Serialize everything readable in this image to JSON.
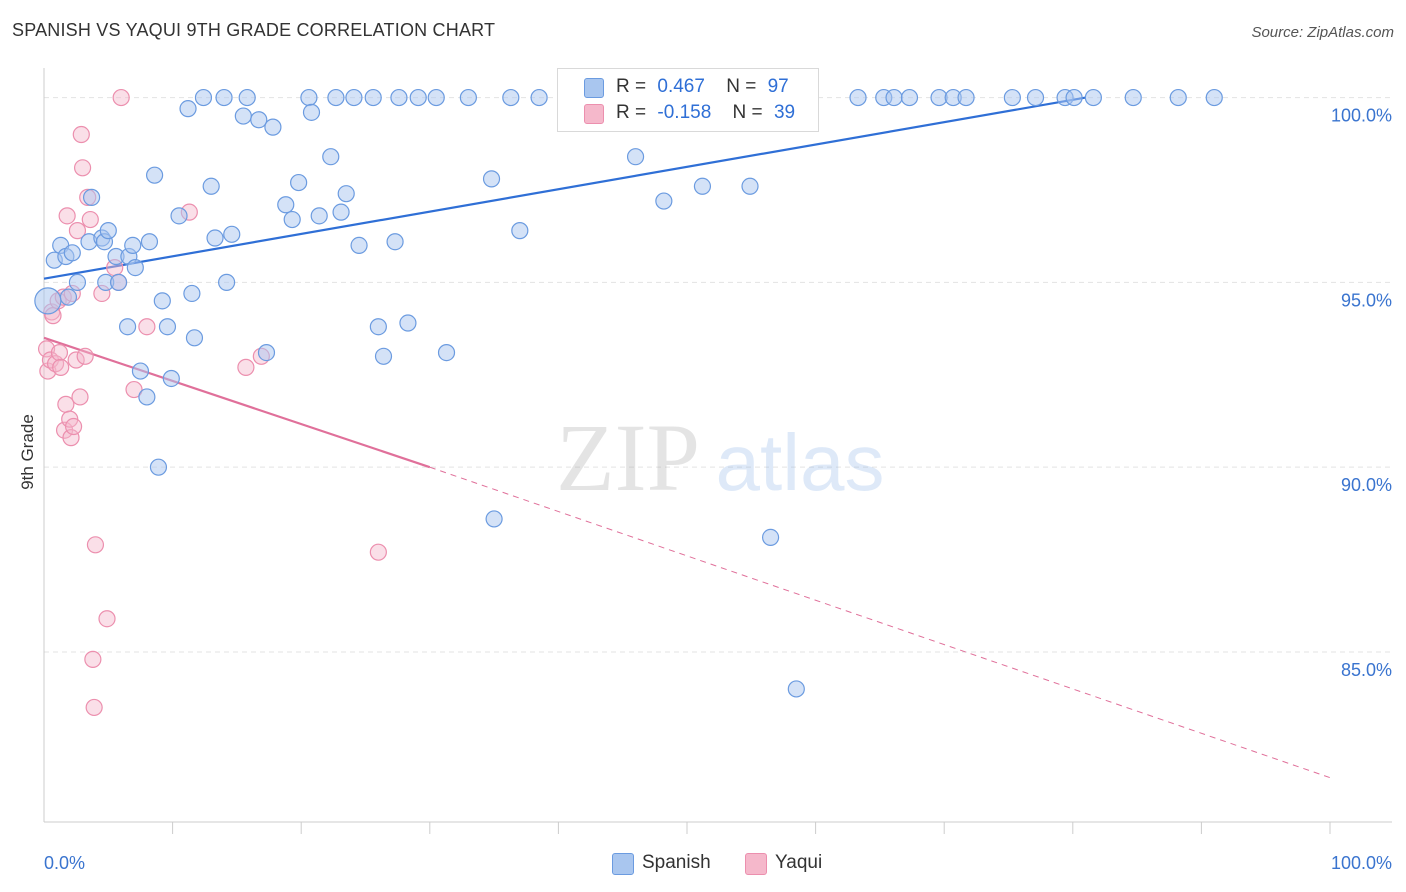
{
  "header": {
    "title": "SPANISH VS YAQUI 9TH GRADE CORRELATION CHART",
    "source": "Source: ZipAtlas.com"
  },
  "watermark": {
    "zip": "ZIP",
    "atlas": "atlas"
  },
  "legend": {
    "rows": [
      {
        "r_label": "R =",
        "r_value": "0.467",
        "n_label": "N =",
        "n_value": "97"
      },
      {
        "r_label": "R =",
        "r_value": "-0.158",
        "n_label": "N =",
        "n_value": "39"
      }
    ]
  },
  "bottom_legend": {
    "spanish": "Spanish",
    "yaqui": "Yaqui"
  },
  "colors": {
    "spanish_fill": "#a9c6ef",
    "spanish_stroke": "#6b9be0",
    "spanish_line": "#2f6fd6",
    "yaqui_fill": "#f5b8cb",
    "yaqui_stroke": "#ec8fae",
    "yaqui_line": "#e0709a",
    "axis_value": "#3a74cf",
    "grid": "#e3e3e3"
  },
  "chart_data": {
    "type": "scatter",
    "title": "SPANISH VS YAQUI 9TH GRADE CORRELATION CHART",
    "xlabel": "",
    "ylabel": "9th Grade",
    "xlim": [
      0,
      100
    ],
    "ylim": [
      80.4,
      100.8
    ],
    "x_tick_labels": [
      "0.0%",
      "100.0%"
    ],
    "y_ticks": [
      85,
      90,
      95,
      100
    ],
    "y_tick_labels": [
      "85.0%",
      "90.0%",
      "95.0%",
      "100.0%"
    ],
    "grid": true,
    "series": [
      {
        "name": "Spanish",
        "r": 0.467,
        "n": 97,
        "trend": {
          "x0": 0,
          "y0": 95.1,
          "x1": 81,
          "y1": 100.0
        },
        "points": [
          [
            0.8,
            95.6
          ],
          [
            1.3,
            96.0
          ],
          [
            1.7,
            95.7
          ],
          [
            1.9,
            94.6
          ],
          [
            2.2,
            95.8
          ],
          [
            2.6,
            95.0
          ],
          [
            3.5,
            96.1
          ],
          [
            3.7,
            97.3
          ],
          [
            4.5,
            96.2
          ],
          [
            4.7,
            96.1
          ],
          [
            4.8,
            95.0
          ],
          [
            5.0,
            96.4
          ],
          [
            5.6,
            95.7
          ],
          [
            5.8,
            95.0
          ],
          [
            6.5,
            93.8
          ],
          [
            6.6,
            95.7
          ],
          [
            6.9,
            96.0
          ],
          [
            7.1,
            95.4
          ],
          [
            7.5,
            92.6
          ],
          [
            8.0,
            91.9
          ],
          [
            8.2,
            96.1
          ],
          [
            8.6,
            97.9
          ],
          [
            8.9,
            90.0
          ],
          [
            9.2,
            94.5
          ],
          [
            9.6,
            93.8
          ],
          [
            9.9,
            92.4
          ],
          [
            10.5,
            96.8
          ],
          [
            11.2,
            99.7
          ],
          [
            11.5,
            94.7
          ],
          [
            11.7,
            93.5
          ],
          [
            12.4,
            100.0
          ],
          [
            13.0,
            97.6
          ],
          [
            13.3,
            96.2
          ],
          [
            14.0,
            100.0
          ],
          [
            14.2,
            95.0
          ],
          [
            14.6,
            96.3
          ],
          [
            15.5,
            99.5
          ],
          [
            15.8,
            100.0
          ],
          [
            16.7,
            99.4
          ],
          [
            17.3,
            93.1
          ],
          [
            17.8,
            99.2
          ],
          [
            18.8,
            97.1
          ],
          [
            19.3,
            96.7
          ],
          [
            19.8,
            97.7
          ],
          [
            20.6,
            100.0
          ],
          [
            20.8,
            99.6
          ],
          [
            21.4,
            96.8
          ],
          [
            22.3,
            98.4
          ],
          [
            22.7,
            100.0
          ],
          [
            23.1,
            96.9
          ],
          [
            23.5,
            97.4
          ],
          [
            24.1,
            100.0
          ],
          [
            24.5,
            96.0
          ],
          [
            25.6,
            100.0
          ],
          [
            26.0,
            93.8
          ],
          [
            26.4,
            93.0
          ],
          [
            27.3,
            96.1
          ],
          [
            27.6,
            100.0
          ],
          [
            28.3,
            93.9
          ],
          [
            29.1,
            100.0
          ],
          [
            30.5,
            100.0
          ],
          [
            31.3,
            93.1
          ],
          [
            33.0,
            100.0
          ],
          [
            34.8,
            97.8
          ],
          [
            35.0,
            88.6
          ],
          [
            36.3,
            100.0
          ],
          [
            37.0,
            96.4
          ],
          [
            38.5,
            100.0
          ],
          [
            40.6,
            100.0
          ],
          [
            42.9,
            100.0
          ],
          [
            44.7,
            99.5
          ],
          [
            46.0,
            98.4
          ],
          [
            47.0,
            100.0
          ],
          [
            48.2,
            97.2
          ],
          [
            50.0,
            100.0
          ],
          [
            51.2,
            97.6
          ],
          [
            52.1,
            100.0
          ],
          [
            54.9,
            97.6
          ],
          [
            56.3,
            100.0
          ],
          [
            58.2,
            100.0
          ],
          [
            56.5,
            88.1
          ],
          [
            58.5,
            84.0
          ],
          [
            63.3,
            100.0
          ],
          [
            65.3,
            100.0
          ],
          [
            66.1,
            100.0
          ],
          [
            67.3,
            100.0
          ],
          [
            69.6,
            100.0
          ],
          [
            70.7,
            100.0
          ],
          [
            71.7,
            100.0
          ],
          [
            75.3,
            100.0
          ],
          [
            77.1,
            100.0
          ],
          [
            79.4,
            100.0
          ],
          [
            80.1,
            100.0
          ],
          [
            81.6,
            100.0
          ],
          [
            84.7,
            100.0
          ],
          [
            88.2,
            100.0
          ],
          [
            91.0,
            100.0
          ]
        ]
      },
      {
        "name": "Yaqui",
        "r": -0.158,
        "n": 39,
        "trend": {
          "x0": 0,
          "y0": 93.5,
          "x1": 30,
          "y1": 90.0,
          "x_dash_end": 100,
          "y_dash_end": 81.6
        },
        "points": [
          [
            0.2,
            93.2
          ],
          [
            0.3,
            92.6
          ],
          [
            0.5,
            92.9
          ],
          [
            0.6,
            94.2
          ],
          [
            0.7,
            94.1
          ],
          [
            0.9,
            92.8
          ],
          [
            1.1,
            94.5
          ],
          [
            1.2,
            93.1
          ],
          [
            1.3,
            92.7
          ],
          [
            1.5,
            94.6
          ],
          [
            1.6,
            91.0
          ],
          [
            1.7,
            91.7
          ],
          [
            1.8,
            96.8
          ],
          [
            2.0,
            91.3
          ],
          [
            2.1,
            90.8
          ],
          [
            2.2,
            94.7
          ],
          [
            2.3,
            91.1
          ],
          [
            2.5,
            92.9
          ],
          [
            2.6,
            96.4
          ],
          [
            2.8,
            91.9
          ],
          [
            2.9,
            99.0
          ],
          [
            3.0,
            98.1
          ],
          [
            3.2,
            93.0
          ],
          [
            3.4,
            97.3
          ],
          [
            3.6,
            96.7
          ],
          [
            3.8,
            84.8
          ],
          [
            3.9,
            83.5
          ],
          [
            4.0,
            87.9
          ],
          [
            4.5,
            94.7
          ],
          [
            4.9,
            85.9
          ],
          [
            5.5,
            95.4
          ],
          [
            5.8,
            95.0
          ],
          [
            6.0,
            100.0
          ],
          [
            7.0,
            92.1
          ],
          [
            8.0,
            93.8
          ],
          [
            11.3,
            96.9
          ],
          [
            15.7,
            92.7
          ],
          [
            26.0,
            87.7
          ],
          [
            16.9,
            93.0
          ]
        ]
      }
    ]
  }
}
